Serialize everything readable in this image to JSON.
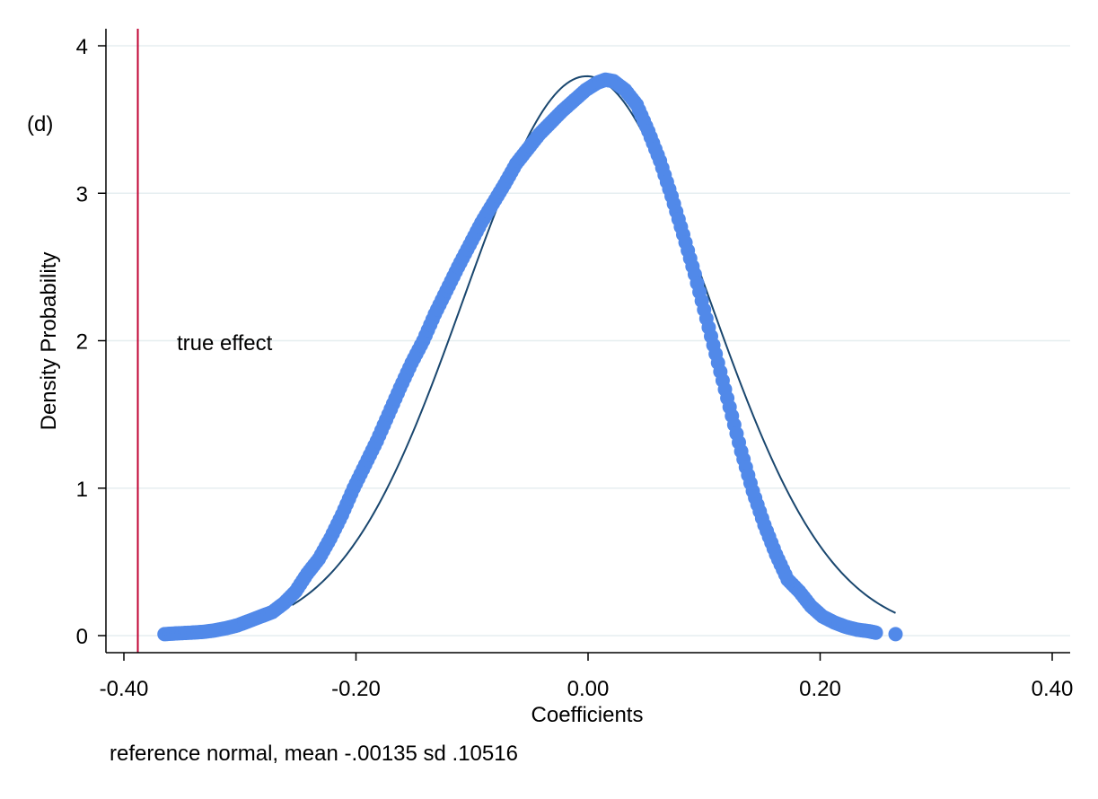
{
  "chart_data": {
    "type": "scatter",
    "panel_label": "(d)",
    "xlabel": "Coefficients",
    "ylabel": "Density Probability",
    "note": "reference normal, mean -.00135 sd .10516",
    "xlim": [
      -0.4,
      0.4
    ],
    "ylim": [
      0,
      4
    ],
    "xticks": [
      -0.4,
      -0.2,
      0.0,
      0.2,
      0.4
    ],
    "xtick_labels": [
      "-0.40",
      "-0.20",
      "0.00",
      "0.20",
      "0.40"
    ],
    "yticks": [
      0,
      1,
      2,
      3,
      4
    ],
    "ytick_labels": [
      "0",
      "1",
      "2",
      "3",
      "4"
    ],
    "grid": "horizontal",
    "colors": {
      "points": "#5189e9",
      "normal_curve": "#1a476f",
      "true_effect_line": "#c10534",
      "grid": "#e6eef0"
    },
    "true_effect": {
      "x": -0.388,
      "label": "true effect"
    },
    "reference_normal": {
      "mean": -0.00135,
      "sd": 0.10516,
      "x_range": [
        -0.255,
        0.265
      ]
    },
    "density_points": [
      {
        "x": -0.365,
        "y": 0.01
      },
      {
        "x": -0.355,
        "y": 0.015
      },
      {
        "x": -0.342,
        "y": 0.02
      },
      {
        "x": -0.332,
        "y": 0.025
      },
      {
        "x": -0.322,
        "y": 0.035
      },
      {
        "x": -0.312,
        "y": 0.05
      },
      {
        "x": -0.302,
        "y": 0.07
      },
      {
        "x": -0.292,
        "y": 0.1
      },
      {
        "x": -0.282,
        "y": 0.13
      },
      {
        "x": -0.272,
        "y": 0.16
      },
      {
        "x": -0.262,
        "y": 0.22
      },
      {
        "x": -0.252,
        "y": 0.3
      },
      {
        "x": -0.242,
        "y": 0.42
      },
      {
        "x": -0.232,
        "y": 0.52
      },
      {
        "x": -0.222,
        "y": 0.66
      },
      {
        "x": -0.212,
        "y": 0.82
      },
      {
        "x": -0.202,
        "y": 1.0
      },
      {
        "x": -0.192,
        "y": 1.16
      },
      {
        "x": -0.182,
        "y": 1.32
      },
      {
        "x": -0.172,
        "y": 1.5
      },
      {
        "x": -0.162,
        "y": 1.68
      },
      {
        "x": -0.152,
        "y": 1.85
      },
      {
        "x": -0.142,
        "y": 2.0
      },
      {
        "x": -0.132,
        "y": 2.18
      },
      {
        "x": -0.122,
        "y": 2.34
      },
      {
        "x": -0.112,
        "y": 2.5
      },
      {
        "x": -0.102,
        "y": 2.65
      },
      {
        "x": -0.092,
        "y": 2.8
      },
      {
        "x": -0.082,
        "y": 2.93
      },
      {
        "x": -0.072,
        "y": 3.06
      },
      {
        "x": -0.062,
        "y": 3.2
      },
      {
        "x": -0.052,
        "y": 3.3
      },
      {
        "x": -0.042,
        "y": 3.4
      },
      {
        "x": -0.032,
        "y": 3.48
      },
      {
        "x": -0.022,
        "y": 3.56
      },
      {
        "x": -0.012,
        "y": 3.63
      },
      {
        "x": -0.002,
        "y": 3.7
      },
      {
        "x": 0.008,
        "y": 3.75
      },
      {
        "x": 0.015,
        "y": 3.77
      },
      {
        "x": 0.022,
        "y": 3.76
      },
      {
        "x": 0.032,
        "y": 3.7
      },
      {
        "x": 0.042,
        "y": 3.6
      },
      {
        "x": 0.052,
        "y": 3.42
      },
      {
        "x": 0.062,
        "y": 3.22
      },
      {
        "x": 0.072,
        "y": 2.98
      },
      {
        "x": 0.082,
        "y": 2.72
      },
      {
        "x": 0.092,
        "y": 2.45
      },
      {
        "x": 0.102,
        "y": 2.15
      },
      {
        "x": 0.112,
        "y": 1.85
      },
      {
        "x": 0.122,
        "y": 1.55
      },
      {
        "x": 0.132,
        "y": 1.25
      },
      {
        "x": 0.142,
        "y": 0.98
      },
      {
        "x": 0.152,
        "y": 0.75
      },
      {
        "x": 0.162,
        "y": 0.55
      },
      {
        "x": 0.172,
        "y": 0.38
      },
      {
        "x": 0.182,
        "y": 0.3
      },
      {
        "x": 0.192,
        "y": 0.2
      },
      {
        "x": 0.202,
        "y": 0.13
      },
      {
        "x": 0.212,
        "y": 0.09
      },
      {
        "x": 0.222,
        "y": 0.06
      },
      {
        "x": 0.232,
        "y": 0.04
      },
      {
        "x": 0.242,
        "y": 0.03
      },
      {
        "x": 0.248,
        "y": 0.02
      },
      {
        "x": 0.265,
        "y": 0.01
      }
    ]
  }
}
